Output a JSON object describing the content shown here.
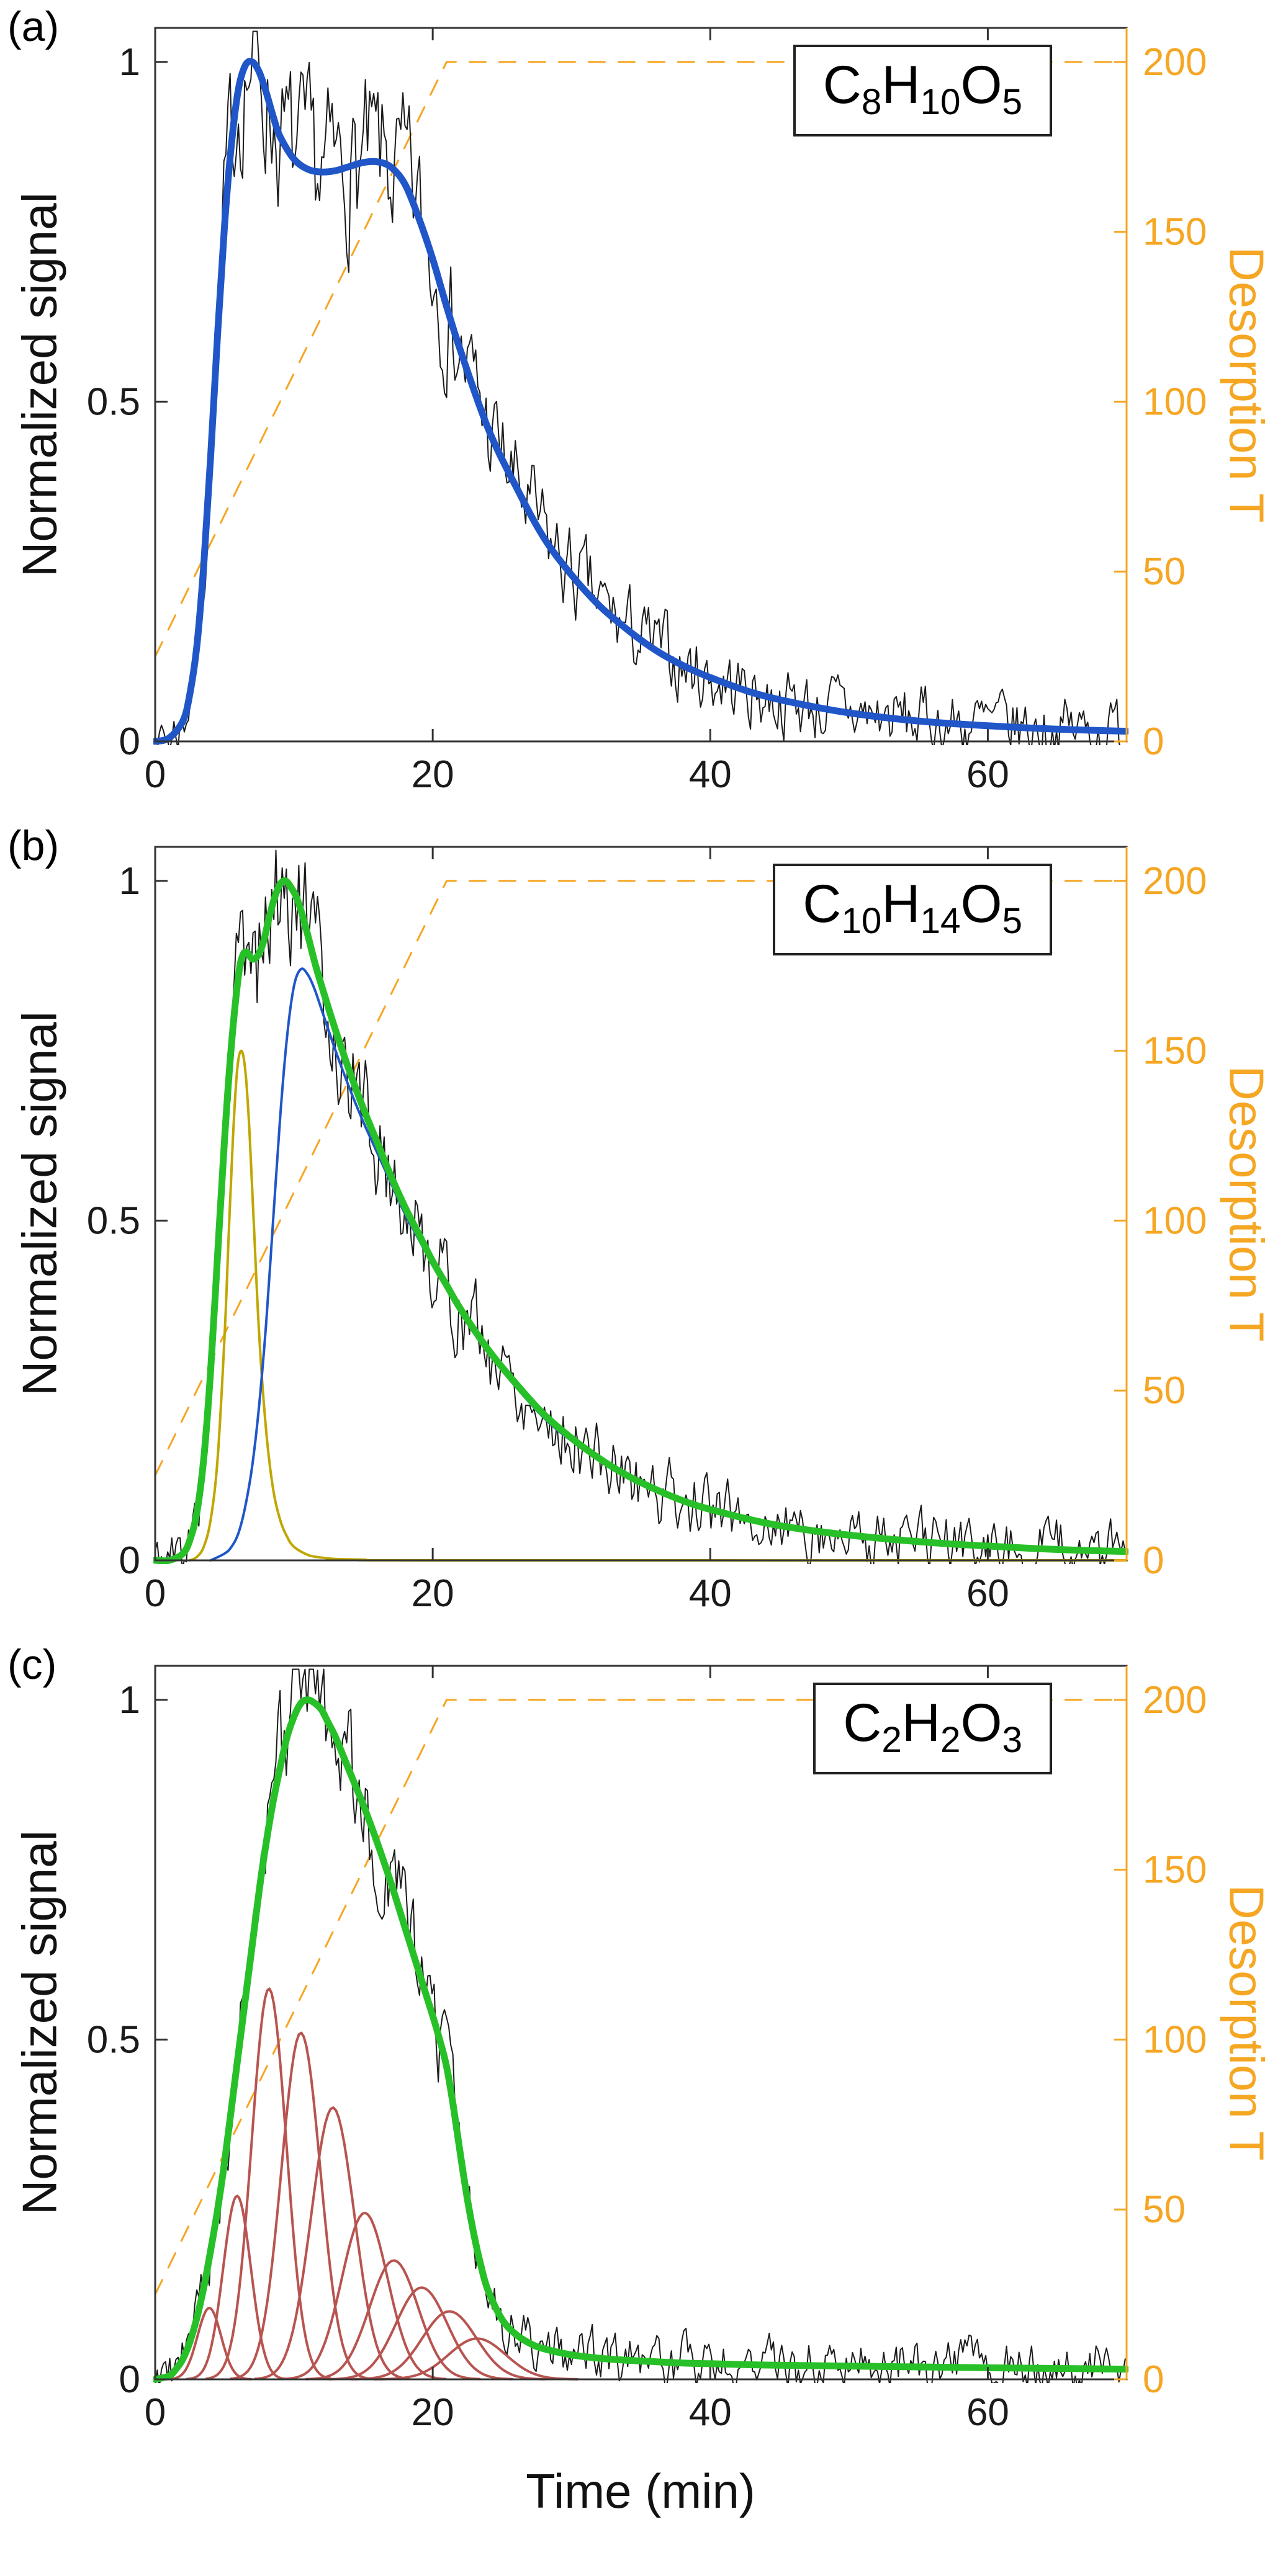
{
  "figure": {
    "bg": "#ffffff",
    "xlabel": "Time (min)",
    "accent_orange": "#F5A623",
    "axis_color": "#333333"
  },
  "chart_data": [
    {
      "type": "line",
      "panel_label": "(a)",
      "formula": [
        [
          "C",
          0
        ],
        [
          "8",
          1
        ],
        [
          "H",
          0
        ],
        [
          "10",
          1
        ],
        [
          "O",
          0
        ],
        [
          "5",
          1
        ]
      ],
      "ylabel_left": "Normalized signal",
      "ylabel_right": "Desorption T",
      "xlim": [
        0,
        70
      ],
      "ylim_left": [
        0,
        1.05
      ],
      "ylim_right": [
        0,
        210
      ],
      "xticks": [
        0,
        20,
        40,
        60
      ],
      "yticks_left": [
        0,
        0.5,
        1
      ],
      "yticks_right": [
        0,
        50,
        100,
        150,
        200
      ],
      "grid": false,
      "series": [
        {
          "name": "temperature-ramp",
          "axis": "right",
          "kind": "points",
          "smooth": false,
          "color": "#F5A623",
          "width": 3,
          "dash": "26 22",
          "x": [
            0,
            21,
            70
          ],
          "y": [
            25,
            200,
            200
          ]
        },
        {
          "name": "measured-signal",
          "kind": "noisy",
          "base": "fit",
          "color": "#1a1a1a",
          "width": 2,
          "noise_amp": 0.09,
          "seed": 7
        },
        {
          "name": "fit",
          "kind": "points",
          "color": "#2056C8",
          "width": 11,
          "x": [
            0,
            1,
            2,
            2.5,
            3,
            3.5,
            4,
            4.5,
            5,
            5.5,
            6,
            6.5,
            7,
            7.5,
            8,
            8.5,
            9,
            10,
            11,
            12,
            13,
            14,
            15,
            16,
            17,
            18,
            19,
            20,
            21,
            22,
            24,
            26,
            28,
            30,
            32,
            34,
            36,
            38,
            40,
            43,
            46,
            50,
            55,
            60,
            65,
            70
          ],
          "y": [
            0,
            0.005,
            0.03,
            0.07,
            0.14,
            0.26,
            0.42,
            0.6,
            0.76,
            0.88,
            0.96,
            0.995,
            1.0,
            0.985,
            0.955,
            0.92,
            0.89,
            0.857,
            0.842,
            0.838,
            0.84,
            0.846,
            0.852,
            0.853,
            0.845,
            0.82,
            0.77,
            0.71,
            0.64,
            0.575,
            0.46,
            0.375,
            0.3,
            0.245,
            0.2,
            0.165,
            0.135,
            0.112,
            0.094,
            0.072,
            0.057,
            0.042,
            0.03,
            0.023,
            0.018,
            0.015
          ]
        }
      ]
    },
    {
      "type": "line",
      "panel_label": "(b)",
      "formula": [
        [
          "C",
          0
        ],
        [
          "10",
          1
        ],
        [
          "H",
          0
        ],
        [
          "14",
          1
        ],
        [
          "O",
          0
        ],
        [
          "5",
          1
        ]
      ],
      "ylabel_left": "Normalized signal",
      "ylabel_right": "Desorption T",
      "xlim": [
        0,
        70
      ],
      "ylim_left": [
        0,
        1.05
      ],
      "ylim_right": [
        0,
        210
      ],
      "xticks": [
        0,
        20,
        40,
        60
      ],
      "yticks_left": [
        0,
        0.5,
        1
      ],
      "yticks_right": [
        0,
        50,
        100,
        150,
        200
      ],
      "grid": false,
      "series": [
        {
          "name": "temperature-ramp",
          "axis": "right",
          "kind": "points",
          "smooth": false,
          "color": "#F5A623",
          "width": 3,
          "dash": "26 22",
          "x": [
            0,
            21,
            70
          ],
          "y": [
            25,
            200,
            200
          ]
        },
        {
          "name": "measured-signal",
          "kind": "noisy",
          "base": "total-fit",
          "color": "#1a1a1a",
          "width": 2,
          "noise_amp": 0.08,
          "seed": 5
        },
        {
          "name": "component-1",
          "kind": "points",
          "color": "#BFA700",
          "width": 4,
          "x": [
            2.5,
            3,
            3.5,
            4,
            4.5,
            5,
            5.3,
            5.6,
            5.9,
            6.2,
            6.5,
            6.8,
            7.1,
            7.5,
            8,
            8.5,
            9,
            9.5,
            10,
            11,
            12,
            13,
            15,
            20,
            70
          ],
          "y": [
            0,
            0.005,
            0.02,
            0.06,
            0.15,
            0.33,
            0.48,
            0.62,
            0.72,
            0.75,
            0.72,
            0.63,
            0.5,
            0.33,
            0.19,
            0.105,
            0.06,
            0.035,
            0.02,
            0.008,
            0.004,
            0.002,
            0.001,
            0,
            0
          ]
        },
        {
          "name": "component-2",
          "kind": "points",
          "color": "#2056C8",
          "width": 4,
          "x": [
            4,
            5,
            5.5,
            6,
            6.5,
            7,
            7.5,
            8,
            8.5,
            9,
            9.5,
            10,
            10.5,
            11,
            11.5,
            12,
            13,
            14,
            15,
            16,
            17,
            18,
            19,
            20,
            22,
            24,
            26,
            28,
            30,
            34,
            38,
            42,
            46,
            50,
            55,
            60,
            65,
            70
          ],
          "y": [
            0,
            0.01,
            0.02,
            0.04,
            0.08,
            0.14,
            0.23,
            0.35,
            0.5,
            0.65,
            0.77,
            0.845,
            0.87,
            0.862,
            0.84,
            0.81,
            0.75,
            0.695,
            0.645,
            0.6,
            0.555,
            0.51,
            0.472,
            0.435,
            0.365,
            0.305,
            0.255,
            0.21,
            0.176,
            0.122,
            0.086,
            0.062,
            0.047,
            0.036,
            0.027,
            0.021,
            0.016,
            0.013
          ]
        },
        {
          "name": "total-fit",
          "kind": "points",
          "color": "#28C028",
          "width": 11,
          "x": [
            0,
            1,
            2,
            2.5,
            3,
            3.5,
            4,
            4.5,
            5,
            5.5,
            6,
            6.3,
            6.6,
            7,
            7.4,
            7.8,
            8.2,
            8.6,
            9,
            9.4,
            9.8,
            10.2,
            10.6,
            11,
            11.5,
            12,
            13,
            14,
            15,
            16,
            17,
            18,
            19,
            20,
            21,
            22,
            24,
            26,
            28,
            30,
            32,
            34,
            36,
            38,
            40,
            44,
            48,
            52,
            56,
            60,
            65,
            70
          ],
          "y": [
            0,
            0,
            0.01,
            0.03,
            0.07,
            0.15,
            0.28,
            0.45,
            0.62,
            0.76,
            0.86,
            0.89,
            0.895,
            0.885,
            0.89,
            0.91,
            0.945,
            0.975,
            0.995,
            1.0,
            0.99,
            0.975,
            0.95,
            0.92,
            0.88,
            0.845,
            0.78,
            0.72,
            0.665,
            0.615,
            0.565,
            0.52,
            0.48,
            0.44,
            0.405,
            0.37,
            0.31,
            0.26,
            0.215,
            0.18,
            0.15,
            0.125,
            0.105,
            0.088,
            0.075,
            0.055,
            0.042,
            0.033,
            0.026,
            0.021,
            0.016,
            0.013
          ]
        }
      ]
    },
    {
      "type": "line",
      "panel_label": "(c)",
      "formula": [
        [
          "C",
          0
        ],
        [
          "2",
          1
        ],
        [
          "H",
          0
        ],
        [
          "2",
          1
        ],
        [
          "O",
          0
        ],
        [
          "3",
          1
        ]
      ],
      "ylabel_left": "Normalized signal",
      "ylabel_right": "Desorption T",
      "xlabel": "Time (min)",
      "xlim": [
        0,
        70
      ],
      "ylim_left": [
        0,
        1.05
      ],
      "ylim_right": [
        0,
        210
      ],
      "xticks": [
        0,
        20,
        40,
        60
      ],
      "yticks_left": [
        0,
        0.5,
        1
      ],
      "yticks_right": [
        0,
        50,
        100,
        150,
        200
      ],
      "grid": false,
      "series": [
        {
          "name": "temperature-ramp",
          "axis": "right",
          "kind": "points",
          "smooth": false,
          "color": "#F5A623",
          "width": 3,
          "dash": "26 22",
          "x": [
            0,
            21,
            70
          ],
          "y": [
            25,
            200,
            200
          ]
        },
        {
          "name": "measured-signal",
          "kind": "noisy",
          "base": "total-fit",
          "color": "#1a1a1a",
          "width": 2,
          "noise_amp": 0.07,
          "seed": 9
        },
        {
          "name": "gaussian-components",
          "kind": "gaussians",
          "color": "#B85450",
          "width": 4,
          "components": [
            {
              "c": 3.9,
              "h": 0.105,
              "s": 0.85
            },
            {
              "c": 5.9,
              "h": 0.27,
              "s": 1.0
            },
            {
              "c": 8.2,
              "h": 0.575,
              "s": 1.25
            },
            {
              "c": 10.5,
              "h": 0.51,
              "s": 1.4
            },
            {
              "c": 12.8,
              "h": 0.4,
              "s": 1.55
            },
            {
              "c": 15.1,
              "h": 0.245,
              "s": 1.65
            },
            {
              "c": 17.2,
              "h": 0.175,
              "s": 1.75
            },
            {
              "c": 19.2,
              "h": 0.135,
              "s": 1.85
            },
            {
              "c": 21.2,
              "h": 0.1,
              "s": 1.95
            },
            {
              "c": 23.2,
              "h": 0.06,
              "s": 2.05
            }
          ]
        },
        {
          "name": "total-fit",
          "kind": "points",
          "color": "#28C028",
          "width": 11,
          "x": [
            0,
            1,
            1.5,
            2,
            2.5,
            3,
            3.5,
            4,
            4.5,
            5,
            5.5,
            6,
            6.5,
            7,
            7.5,
            8,
            8.5,
            9,
            9.5,
            10,
            10.5,
            11,
            11.5,
            12,
            12.5,
            13,
            14,
            15,
            16,
            17,
            18,
            19,
            20,
            20.5,
            21,
            21.5,
            22,
            22.5,
            23,
            23.5,
            24,
            25,
            26,
            27,
            28,
            30,
            32,
            34,
            36,
            38,
            40,
            44,
            48,
            52,
            56,
            60,
            65,
            70
          ],
          "y": [
            0,
            0.005,
            0.015,
            0.03,
            0.055,
            0.09,
            0.135,
            0.19,
            0.25,
            0.32,
            0.4,
            0.48,
            0.56,
            0.64,
            0.72,
            0.79,
            0.85,
            0.9,
            0.945,
            0.975,
            0.995,
            1.0,
            0.995,
            0.985,
            0.965,
            0.945,
            0.895,
            0.845,
            0.79,
            0.73,
            0.665,
            0.6,
            0.535,
            0.5,
            0.46,
            0.4,
            0.33,
            0.265,
            0.21,
            0.165,
            0.13,
            0.088,
            0.066,
            0.053,
            0.045,
            0.036,
            0.031,
            0.028,
            0.026,
            0.024,
            0.023,
            0.021,
            0.02,
            0.019,
            0.018,
            0.017,
            0.016,
            0.015
          ]
        }
      ]
    }
  ]
}
